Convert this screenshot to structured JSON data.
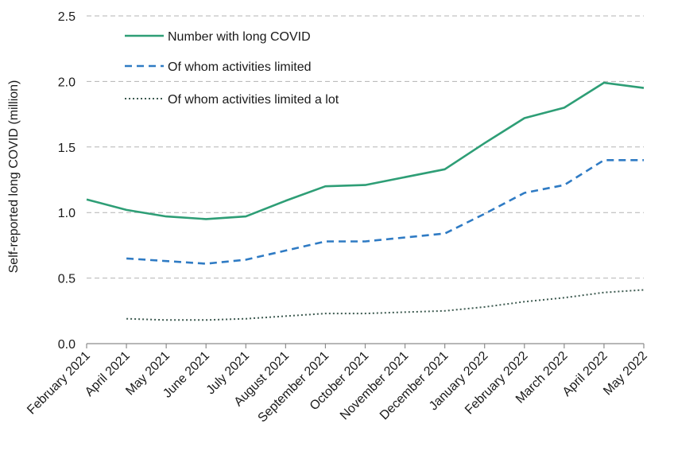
{
  "chart_data": {
    "type": "line",
    "title": "",
    "xlabel": "",
    "ylabel": "Self-reported long COVID (million)",
    "ylim": [
      0,
      2.5
    ],
    "yticks": [
      "0.0",
      "0.5",
      "1.0",
      "1.5",
      "2.0",
      "2.5"
    ],
    "grid": "horizontal dashed",
    "legend_position": "top-left",
    "categories": [
      "February 2021",
      "April 2021",
      "May 2021",
      "June 2021",
      "July 2021",
      "August 2021",
      "September 2021",
      "October 2021",
      "November 2021",
      "December 2021",
      "January 2022",
      "February 2022",
      "March 2022",
      "April 2022",
      "May 2022"
    ],
    "series": [
      {
        "name": "Number with long COVID",
        "color": "#2e9e76",
        "style": "solid",
        "values": [
          1.1,
          1.02,
          0.97,
          0.95,
          0.97,
          1.09,
          1.2,
          1.21,
          1.27,
          1.33,
          1.53,
          1.72,
          1.8,
          1.99,
          1.95
        ]
      },
      {
        "name": "Of whom activities limited",
        "color": "#2f7bc4",
        "style": "dashed",
        "values": [
          null,
          0.65,
          0.63,
          0.61,
          0.64,
          0.71,
          0.78,
          0.78,
          0.81,
          0.84,
          0.99,
          1.15,
          1.21,
          1.4,
          1.4
        ]
      },
      {
        "name": "Of whom activities limited a lot",
        "color": "#3d5a50",
        "style": "dotted",
        "values": [
          null,
          0.19,
          0.18,
          0.18,
          0.19,
          0.21,
          0.23,
          0.23,
          0.24,
          0.25,
          0.28,
          0.32,
          0.35,
          0.39,
          0.41
        ]
      }
    ]
  }
}
